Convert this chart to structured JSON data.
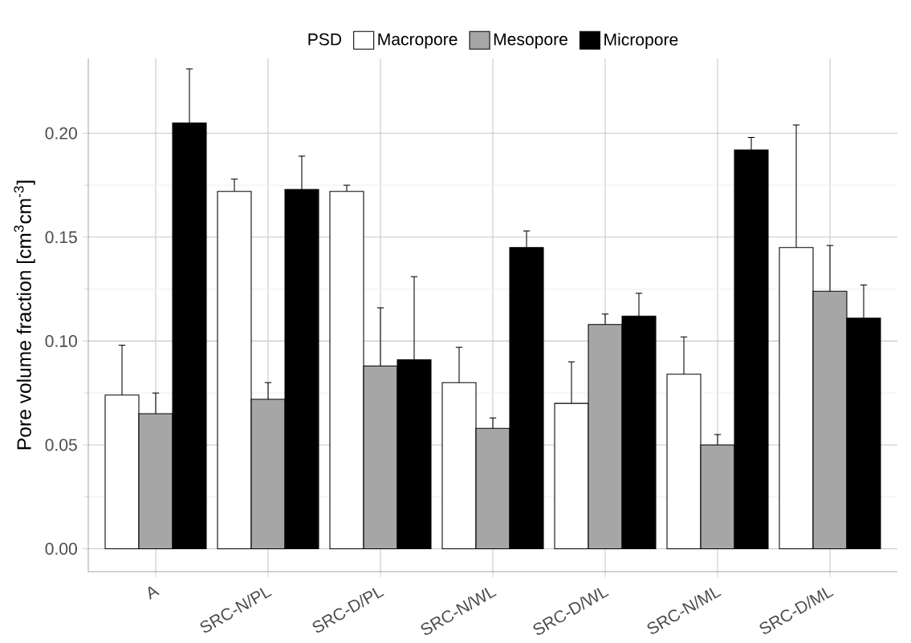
{
  "chart_data": {
    "type": "bar",
    "ylabel": "Pore volume fraction [cm$^{3}$cm$^{-3}$]",
    "legend_title": "PSD",
    "categories": [
      "A",
      "SRC-N/PL",
      "SRC-D/PL",
      "SRC-N/WL",
      "SRC-D/WL",
      "SRC-N/ML",
      "SRC-D/ML"
    ],
    "series": [
      {
        "name": "Macropore",
        "color": "#ffffff",
        "values": [
          0.074,
          0.172,
          0.172,
          0.08,
          0.07,
          0.084,
          0.145
        ],
        "errors": [
          [
            0.074,
            0.098
          ],
          [
            0.172,
            0.178
          ],
          [
            0.172,
            0.175
          ],
          [
            0.08,
            0.097
          ],
          [
            0.07,
            0.09
          ],
          [
            0.084,
            0.102
          ],
          [
            0.145,
            0.204
          ]
        ]
      },
      {
        "name": "Mesopore",
        "color": "#a6a6a6",
        "values": [
          0.065,
          0.072,
          0.088,
          0.058,
          0.108,
          0.05,
          0.124
        ],
        "errors": [
          [
            0.065,
            0.075
          ],
          [
            0.072,
            0.08
          ],
          [
            0.088,
            0.116
          ],
          [
            0.058,
            0.063
          ],
          [
            0.108,
            0.113
          ],
          [
            0.05,
            0.055
          ],
          [
            0.124,
            0.146
          ]
        ]
      },
      {
        "name": "Micropore",
        "color": "#000000",
        "values": [
          0.205,
          0.173,
          0.091,
          0.145,
          0.112,
          0.192,
          0.111
        ],
        "errors": [
          [
            0.205,
            0.231
          ],
          [
            0.173,
            0.189
          ],
          [
            0.091,
            0.131
          ],
          [
            0.145,
            0.153
          ],
          [
            0.112,
            0.123
          ],
          [
            0.192,
            0.198
          ],
          [
            0.111,
            0.127
          ]
        ]
      }
    ],
    "ylim": [
      -0.011,
      0.236
    ],
    "yticks": [
      {
        "value": 0,
        "label": "0.00"
      },
      {
        "value": 0.05,
        "label": "0.05"
      },
      {
        "value": 0.1,
        "label": "0.10"
      },
      {
        "value": 0.15,
        "label": "0.15"
      },
      {
        "value": 0.2,
        "label": "0.20"
      }
    ],
    "grid": true,
    "legend": "top"
  }
}
